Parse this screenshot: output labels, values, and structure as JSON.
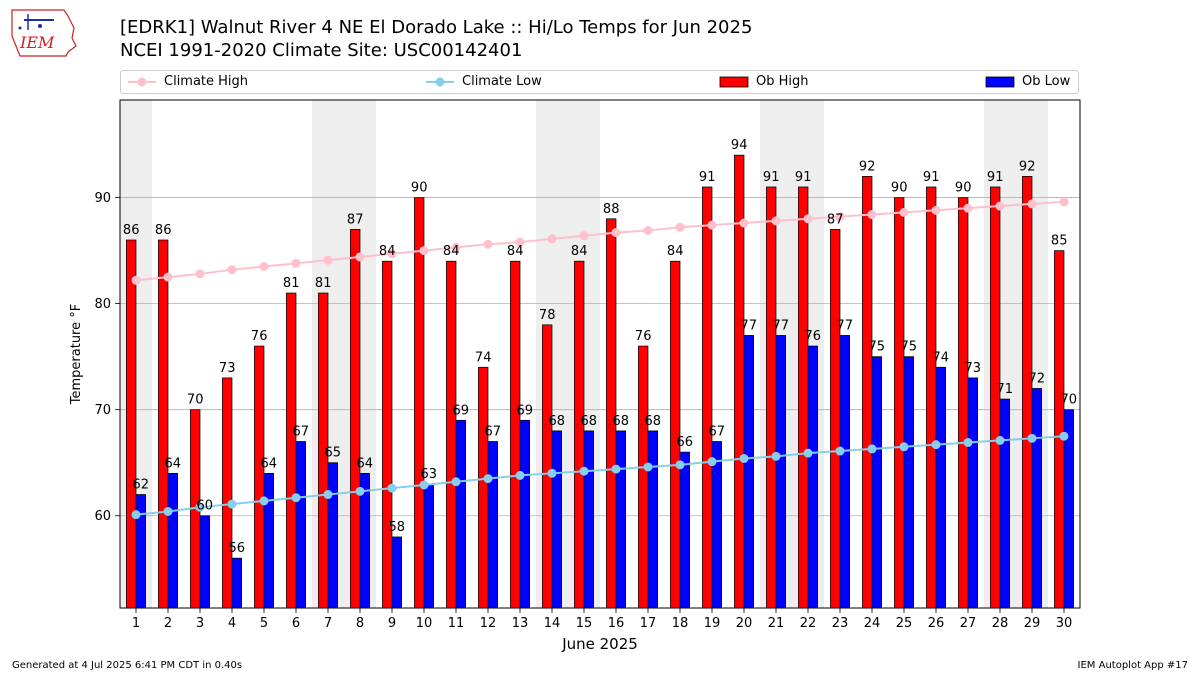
{
  "logo": {
    "text": "IEM",
    "icon": "iem-logo-icon"
  },
  "title_line1": "[EDRK1] Walnut River 4 NE El Dorado Lake :: Hi/Lo Temps for Jun 2025",
  "title_line2": "NCEI 1991-2020 Climate Site: USC00142401",
  "footer_left": "Generated at 4 Jul 2025 6:41 PM CDT in 0.40s",
  "footer_right": "IEM Autoplot App #17",
  "colors": {
    "ob_high": "#ff0000",
    "ob_low": "#0000ff",
    "climate_high": "#ffc0cb",
    "climate_low": "#87ceeb",
    "weekend_band": "#eeeeee",
    "grid": "#b0b0b0"
  },
  "chart_data": {
    "type": "bar",
    "xlabel": "June 2025",
    "ylabel": "Temperature °F",
    "ylim": [
      51.3,
      99.2
    ],
    "yticks": [
      60,
      70,
      80,
      90
    ],
    "grid": "horizontal",
    "legend": "top",
    "categories": [
      1,
      2,
      3,
      4,
      5,
      6,
      7,
      8,
      9,
      10,
      11,
      12,
      13,
      14,
      15,
      16,
      17,
      18,
      19,
      20,
      21,
      22,
      23,
      24,
      25,
      26,
      27,
      28,
      29,
      30
    ],
    "weekend_days": [
      1,
      7,
      8,
      14,
      15,
      21,
      22,
      28,
      29
    ],
    "series": [
      {
        "name": "Ob High",
        "kind": "bar",
        "values": [
          86,
          86,
          70,
          73,
          76,
          81,
          81,
          87,
          84,
          90,
          84,
          74,
          84,
          78,
          84,
          88,
          76,
          84,
          91,
          94,
          91,
          91,
          87,
          92,
          90,
          91,
          90,
          91,
          92,
          85
        ]
      },
      {
        "name": "Ob Low",
        "kind": "bar",
        "values": [
          62,
          64,
          60,
          56,
          64,
          67,
          65,
          64,
          58,
          63,
          69,
          67,
          69,
          68,
          68,
          68,
          68,
          66,
          67,
          77,
          77,
          76,
          77,
          75,
          75,
          74,
          73,
          71,
          72,
          70
        ]
      },
      {
        "name": "Climate High",
        "kind": "line",
        "values": [
          82.2,
          82.5,
          82.8,
          83.2,
          83.5,
          83.8,
          84.1,
          84.4,
          84.7,
          85.0,
          85.3,
          85.6,
          85.8,
          86.1,
          86.4,
          86.7,
          86.9,
          87.2,
          87.4,
          87.6,
          87.8,
          88.0,
          88.2,
          88.4,
          88.6,
          88.8,
          89.0,
          89.2,
          89.4,
          89.6
        ]
      },
      {
        "name": "Climate Low",
        "kind": "line",
        "values": [
          60.1,
          60.4,
          60.8,
          61.1,
          61.4,
          61.7,
          62.0,
          62.3,
          62.6,
          62.9,
          63.2,
          63.5,
          63.8,
          64.0,
          64.2,
          64.4,
          64.6,
          64.8,
          65.1,
          65.4,
          65.6,
          65.9,
          66.1,
          66.3,
          66.5,
          66.7,
          66.9,
          67.1,
          67.3,
          67.5
        ]
      }
    ]
  }
}
